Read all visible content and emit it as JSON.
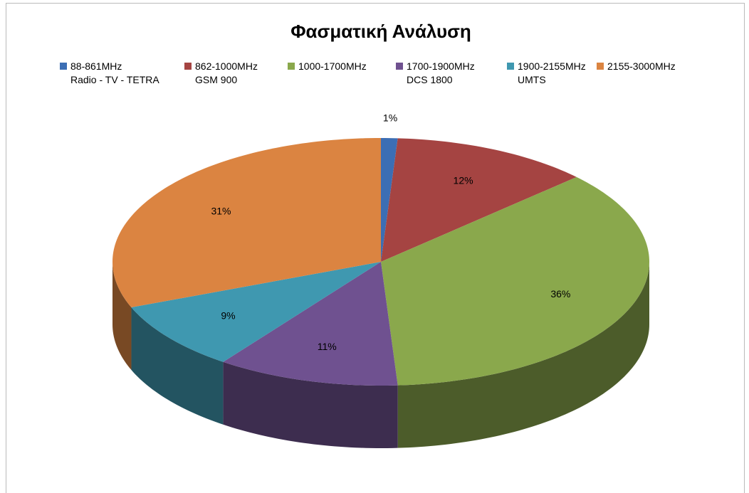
{
  "chart_data": {
    "type": "pie",
    "title": "Φασματική Ανάλυση",
    "categories": [
      "88-861MHz\nRadio - TV - TETRA",
      "862-1000MHz\nGSM 900",
      "1000-1700MHz",
      "1700-1900MHz\nDCS 1800",
      "1900-2155MHz\nUMTS",
      "2155-3000MHz"
    ],
    "values": [
      1,
      12,
      36,
      11,
      9,
      31
    ],
    "value_labels": [
      "1%",
      "12%",
      "36%",
      "11%",
      "9%",
      "31%"
    ],
    "colors": [
      "#3c6eb4",
      "#a54442",
      "#8aa84c",
      "#6f5190",
      "#3f98b0",
      "#db8441"
    ],
    "legend": "top"
  }
}
